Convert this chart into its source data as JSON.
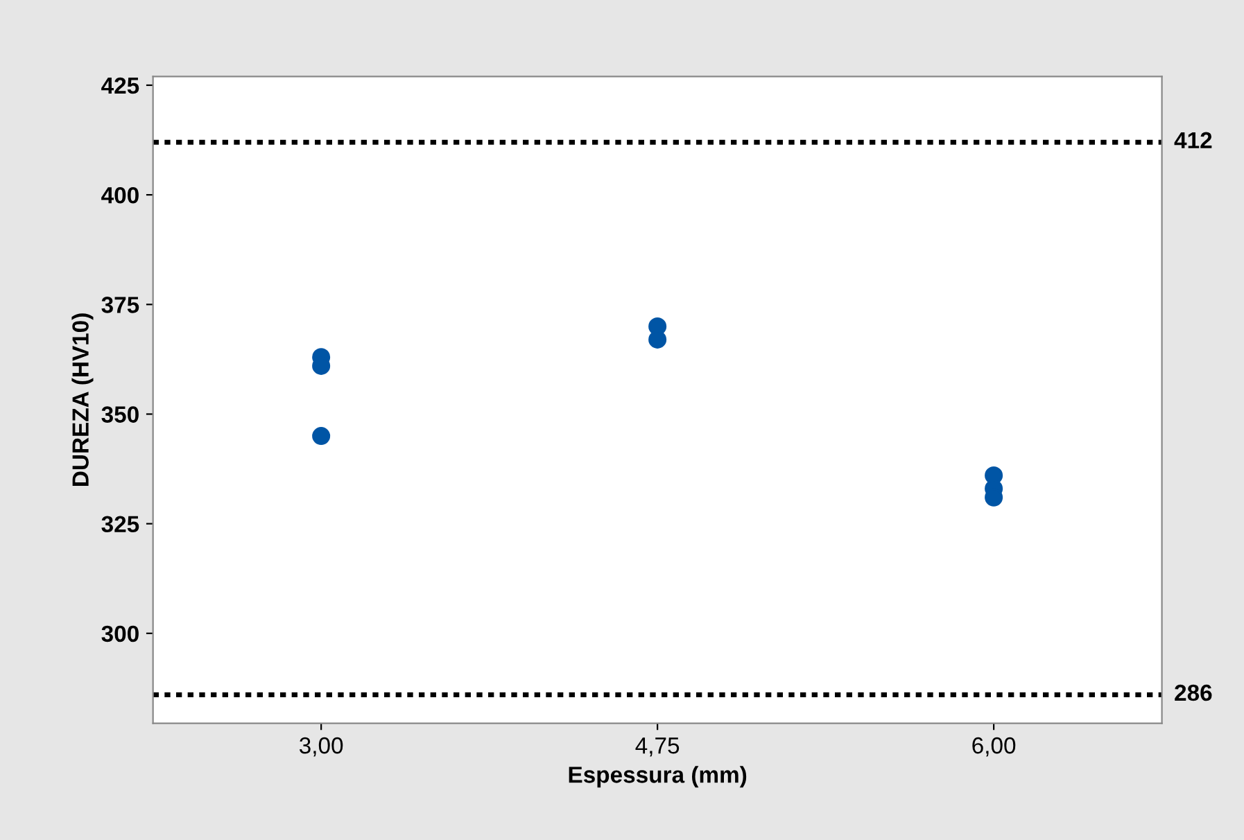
{
  "chart_data": {
    "type": "scatter",
    "xlabel": "Espessura (mm)",
    "ylabel": "DUREZA (HV10)",
    "categories": [
      "3,00",
      "4,75",
      "6,00"
    ],
    "series": [
      {
        "color": "#0055a5",
        "x": [
          "3,00",
          "3,00",
          "3,00",
          "4,75",
          "4,75",
          "6,00",
          "6,00",
          "6,00"
        ],
        "values": [
          363,
          361,
          345,
          370,
          367,
          336,
          333,
          331
        ]
      }
    ],
    "ylim": [
      279.5,
      427
    ],
    "yticks": [
      300,
      325,
      350,
      375,
      400,
      425
    ],
    "marker": "circle",
    "grid": false,
    "legend": false,
    "ref_lines": [
      {
        "axis": "y",
        "value": 412,
        "label": "412",
        "color": "#000000",
        "line_style": "dotted"
      },
      {
        "axis": "y",
        "value": 286,
        "label": "286",
        "color": "#000000",
        "line_style": "dotted"
      }
    ]
  }
}
